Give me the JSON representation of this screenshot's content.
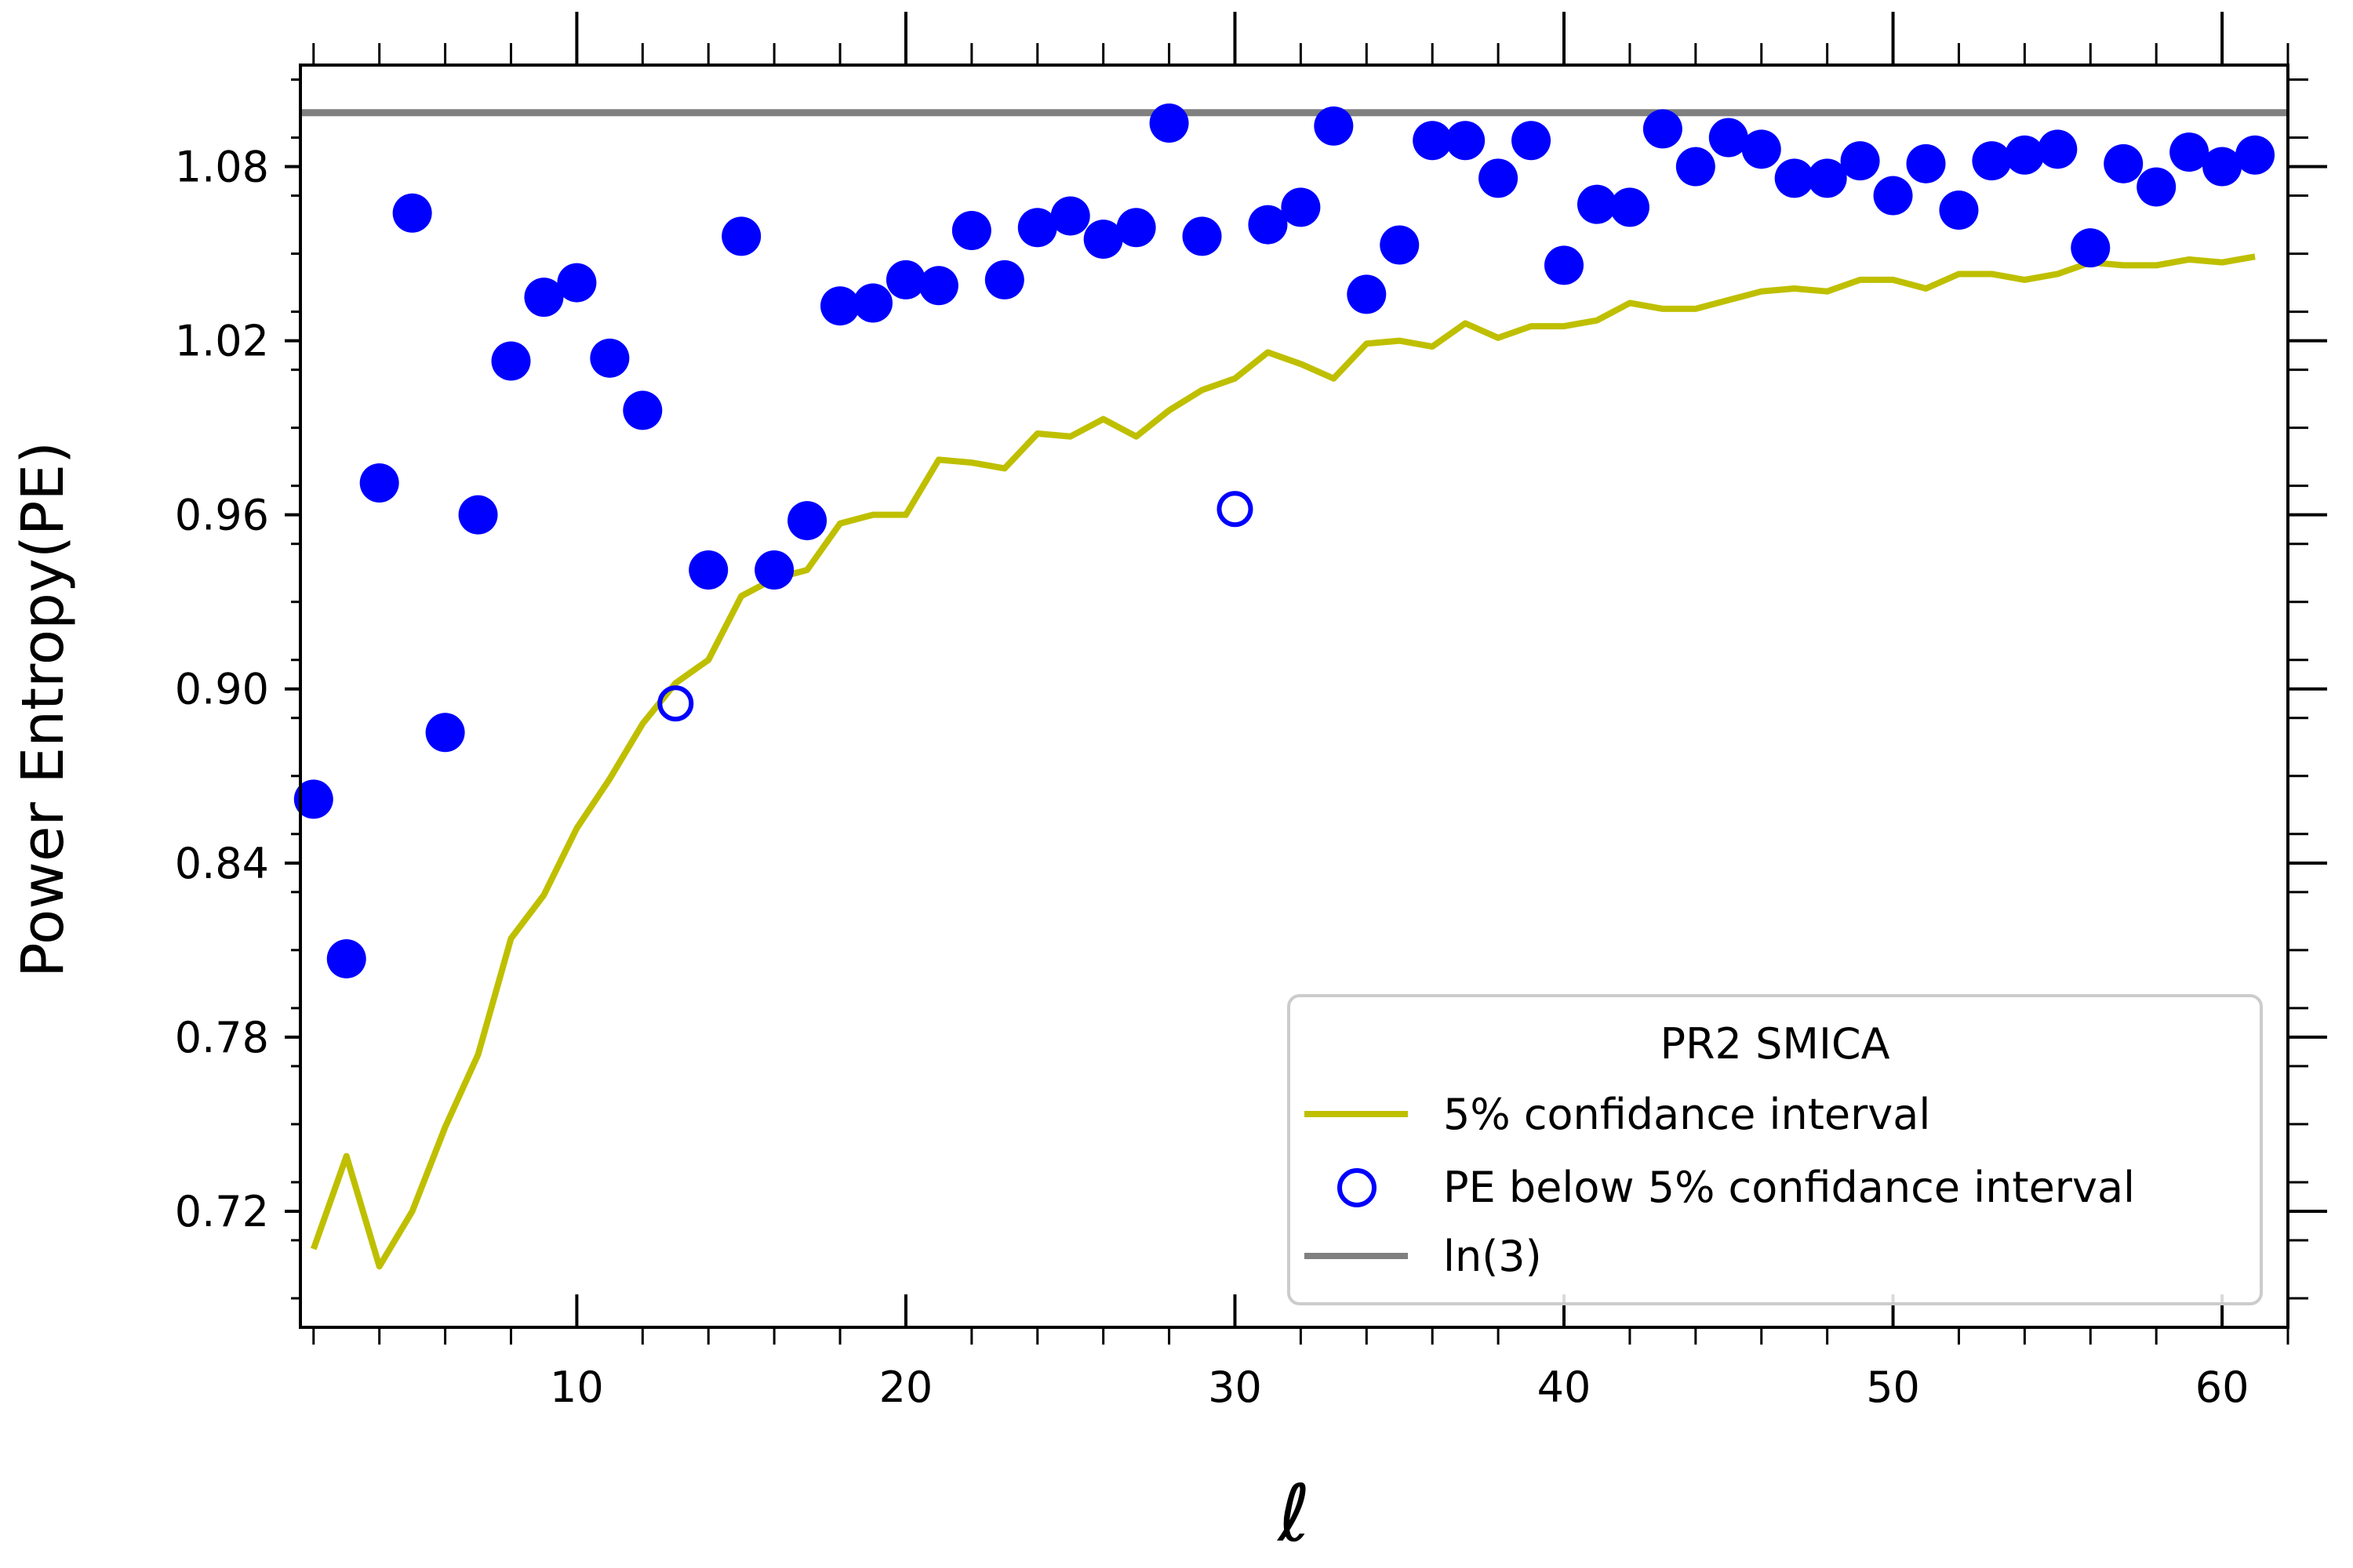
{
  "chart_data": {
    "type": "scatter",
    "title": "",
    "xlabel": "ℓ",
    "ylabel": "Power Entropy(PE)",
    "xlim": [
      1.6,
      62
    ],
    "ylim": [
      0.68,
      1.115
    ],
    "x_ticks": [
      10,
      20,
      30,
      40,
      50,
      60
    ],
    "y_ticks": [
      0.72,
      0.78,
      0.84,
      0.9,
      0.96,
      1.02,
      1.08
    ],
    "x_tick_labels": [
      "10",
      "20",
      "30",
      "40",
      "50",
      "60"
    ],
    "y_tick_labels": [
      "0.72",
      "0.78",
      "0.84",
      "0.90",
      "0.96",
      "1.02",
      "1.08"
    ],
    "grid": false,
    "legend": {
      "title": "PR2 SMICA",
      "position": "lower-right",
      "entries": [
        "5% confidance interval",
        "PE below 5% confidance interval",
        "ln(3)"
      ]
    },
    "reference_line": {
      "name": "ln(3)",
      "value": 1.0986,
      "color": "#808080"
    },
    "confidence_interval": {
      "name": "5% confidance interval",
      "color": "#bfbf00",
      "x": [
        2,
        3,
        4,
        5,
        6,
        7,
        8,
        9,
        10,
        11,
        12,
        13,
        14,
        15,
        16,
        17,
        18,
        19,
        20,
        21,
        22,
        23,
        24,
        25,
        26,
        27,
        28,
        29,
        30,
        31,
        32,
        33,
        34,
        35,
        36,
        37,
        38,
        39,
        40,
        41,
        42,
        43,
        44,
        45,
        46,
        47,
        48,
        49,
        50,
        51,
        52,
        53,
        54,
        55,
        56,
        57,
        58,
        59,
        60,
        61
      ],
      "y": [
        0.707,
        0.739,
        0.701,
        0.72,
        0.749,
        0.774,
        0.814,
        0.829,
        0.852,
        0.869,
        0.888,
        0.902,
        0.91,
        0.932,
        0.938,
        0.941,
        0.957,
        0.96,
        0.96,
        0.979,
        0.978,
        0.976,
        0.988,
        0.987,
        0.993,
        0.987,
        0.996,
        1.003,
        1.007,
        1.016,
        1.012,
        1.007,
        1.019,
        1.02,
        1.018,
        1.026,
        1.021,
        1.025,
        1.025,
        1.027,
        1.033,
        1.031,
        1.031,
        1.034,
        1.037,
        1.038,
        1.037,
        1.041,
        1.041,
        1.038,
        1.043,
        1.043,
        1.041,
        1.043,
        1.047,
        1.046,
        1.046,
        1.048,
        1.047,
        1.049
      ],
      "stroke_width": 8
    },
    "series": [
      {
        "name": "PE",
        "marker": "filled-circle",
        "color": "#0000ff",
        "x": [
          2,
          3,
          4,
          5,
          6,
          7,
          8,
          9,
          10,
          11,
          12,
          14,
          15,
          16,
          17,
          18,
          19,
          20,
          21,
          22,
          23,
          24,
          25,
          26,
          27,
          28,
          29,
          31,
          32,
          33,
          34,
          35,
          36,
          37,
          38,
          39,
          40,
          41,
          42,
          43,
          44,
          45,
          46,
          47,
          48,
          49,
          50,
          51,
          52,
          53,
          54,
          55,
          56,
          57,
          58,
          59,
          60,
          61
        ],
        "y": [
          0.862,
          0.807,
          0.971,
          1.064,
          0.885,
          0.96,
          1.013,
          1.035,
          1.04,
          1.014,
          0.996,
          0.941,
          1.056,
          0.941,
          0.958,
          1.032,
          1.033,
          1.041,
          1.039,
          1.058,
          1.041,
          1.059,
          1.063,
          1.055,
          1.059,
          1.095,
          1.056,
          1.06,
          1.066,
          1.094,
          1.036,
          1.053,
          1.089,
          1.089,
          1.076,
          1.089,
          1.046,
          1.067,
          1.066,
          1.093,
          1.08,
          1.09,
          1.086,
          1.076,
          1.076,
          1.082,
          1.07,
          1.081,
          1.065,
          1.082,
          1.084,
          1.086,
          1.052,
          1.081,
          1.073,
          1.085,
          1.08,
          1.084
        ]
      },
      {
        "name": "PE below 5% confidance interval",
        "marker": "open-circle",
        "color": "#0000ff",
        "x": [
          13,
          30
        ],
        "y": [
          0.895,
          0.962
        ]
      }
    ]
  }
}
